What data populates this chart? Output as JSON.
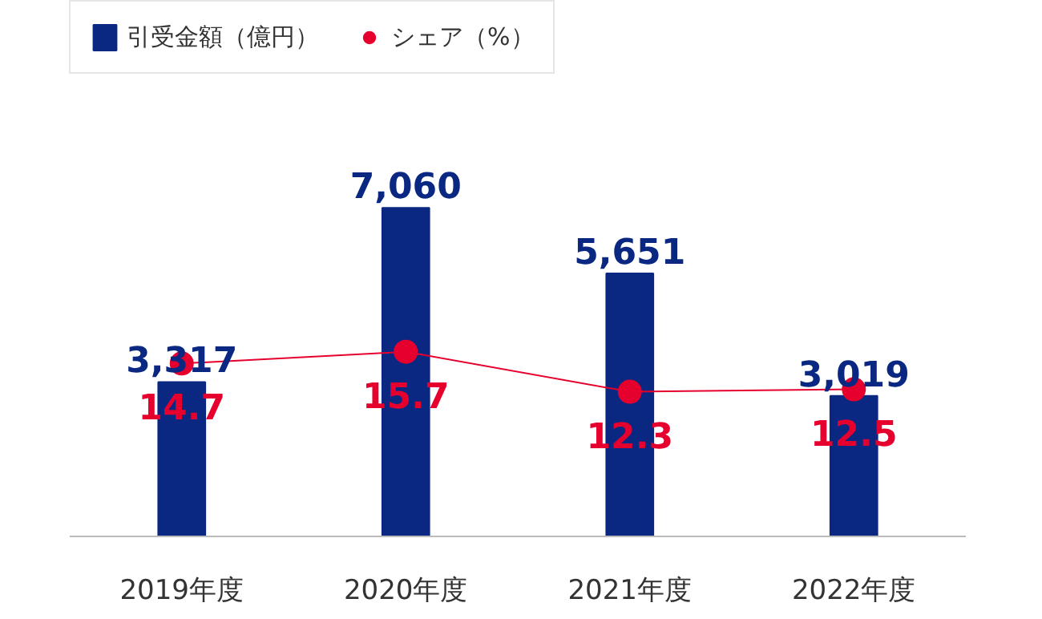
{
  "chart_data": {
    "type": "bar",
    "categories": [
      "2019年度",
      "2020年度",
      "2021年度",
      "2022年度"
    ],
    "series": [
      {
        "name": "引受金額（億円）",
        "color": "#0a2882",
        "values": [
          3317,
          7060,
          5651,
          3019
        ],
        "value_labels": [
          "3,317",
          "7,060",
          "5,651",
          "3,019"
        ]
      },
      {
        "name": "シェア（%）",
        "color": "#e6002d",
        "values": [
          14.7,
          15.7,
          12.3,
          12.5
        ],
        "value_labels": [
          "14.7",
          "15.7",
          "12.3",
          "12.5"
        ],
        "type": "line",
        "axis": "y2"
      }
    ],
    "legend": "top left",
    "tick_labels": "x",
    "marker": "circle",
    "line_style": "solid"
  }
}
